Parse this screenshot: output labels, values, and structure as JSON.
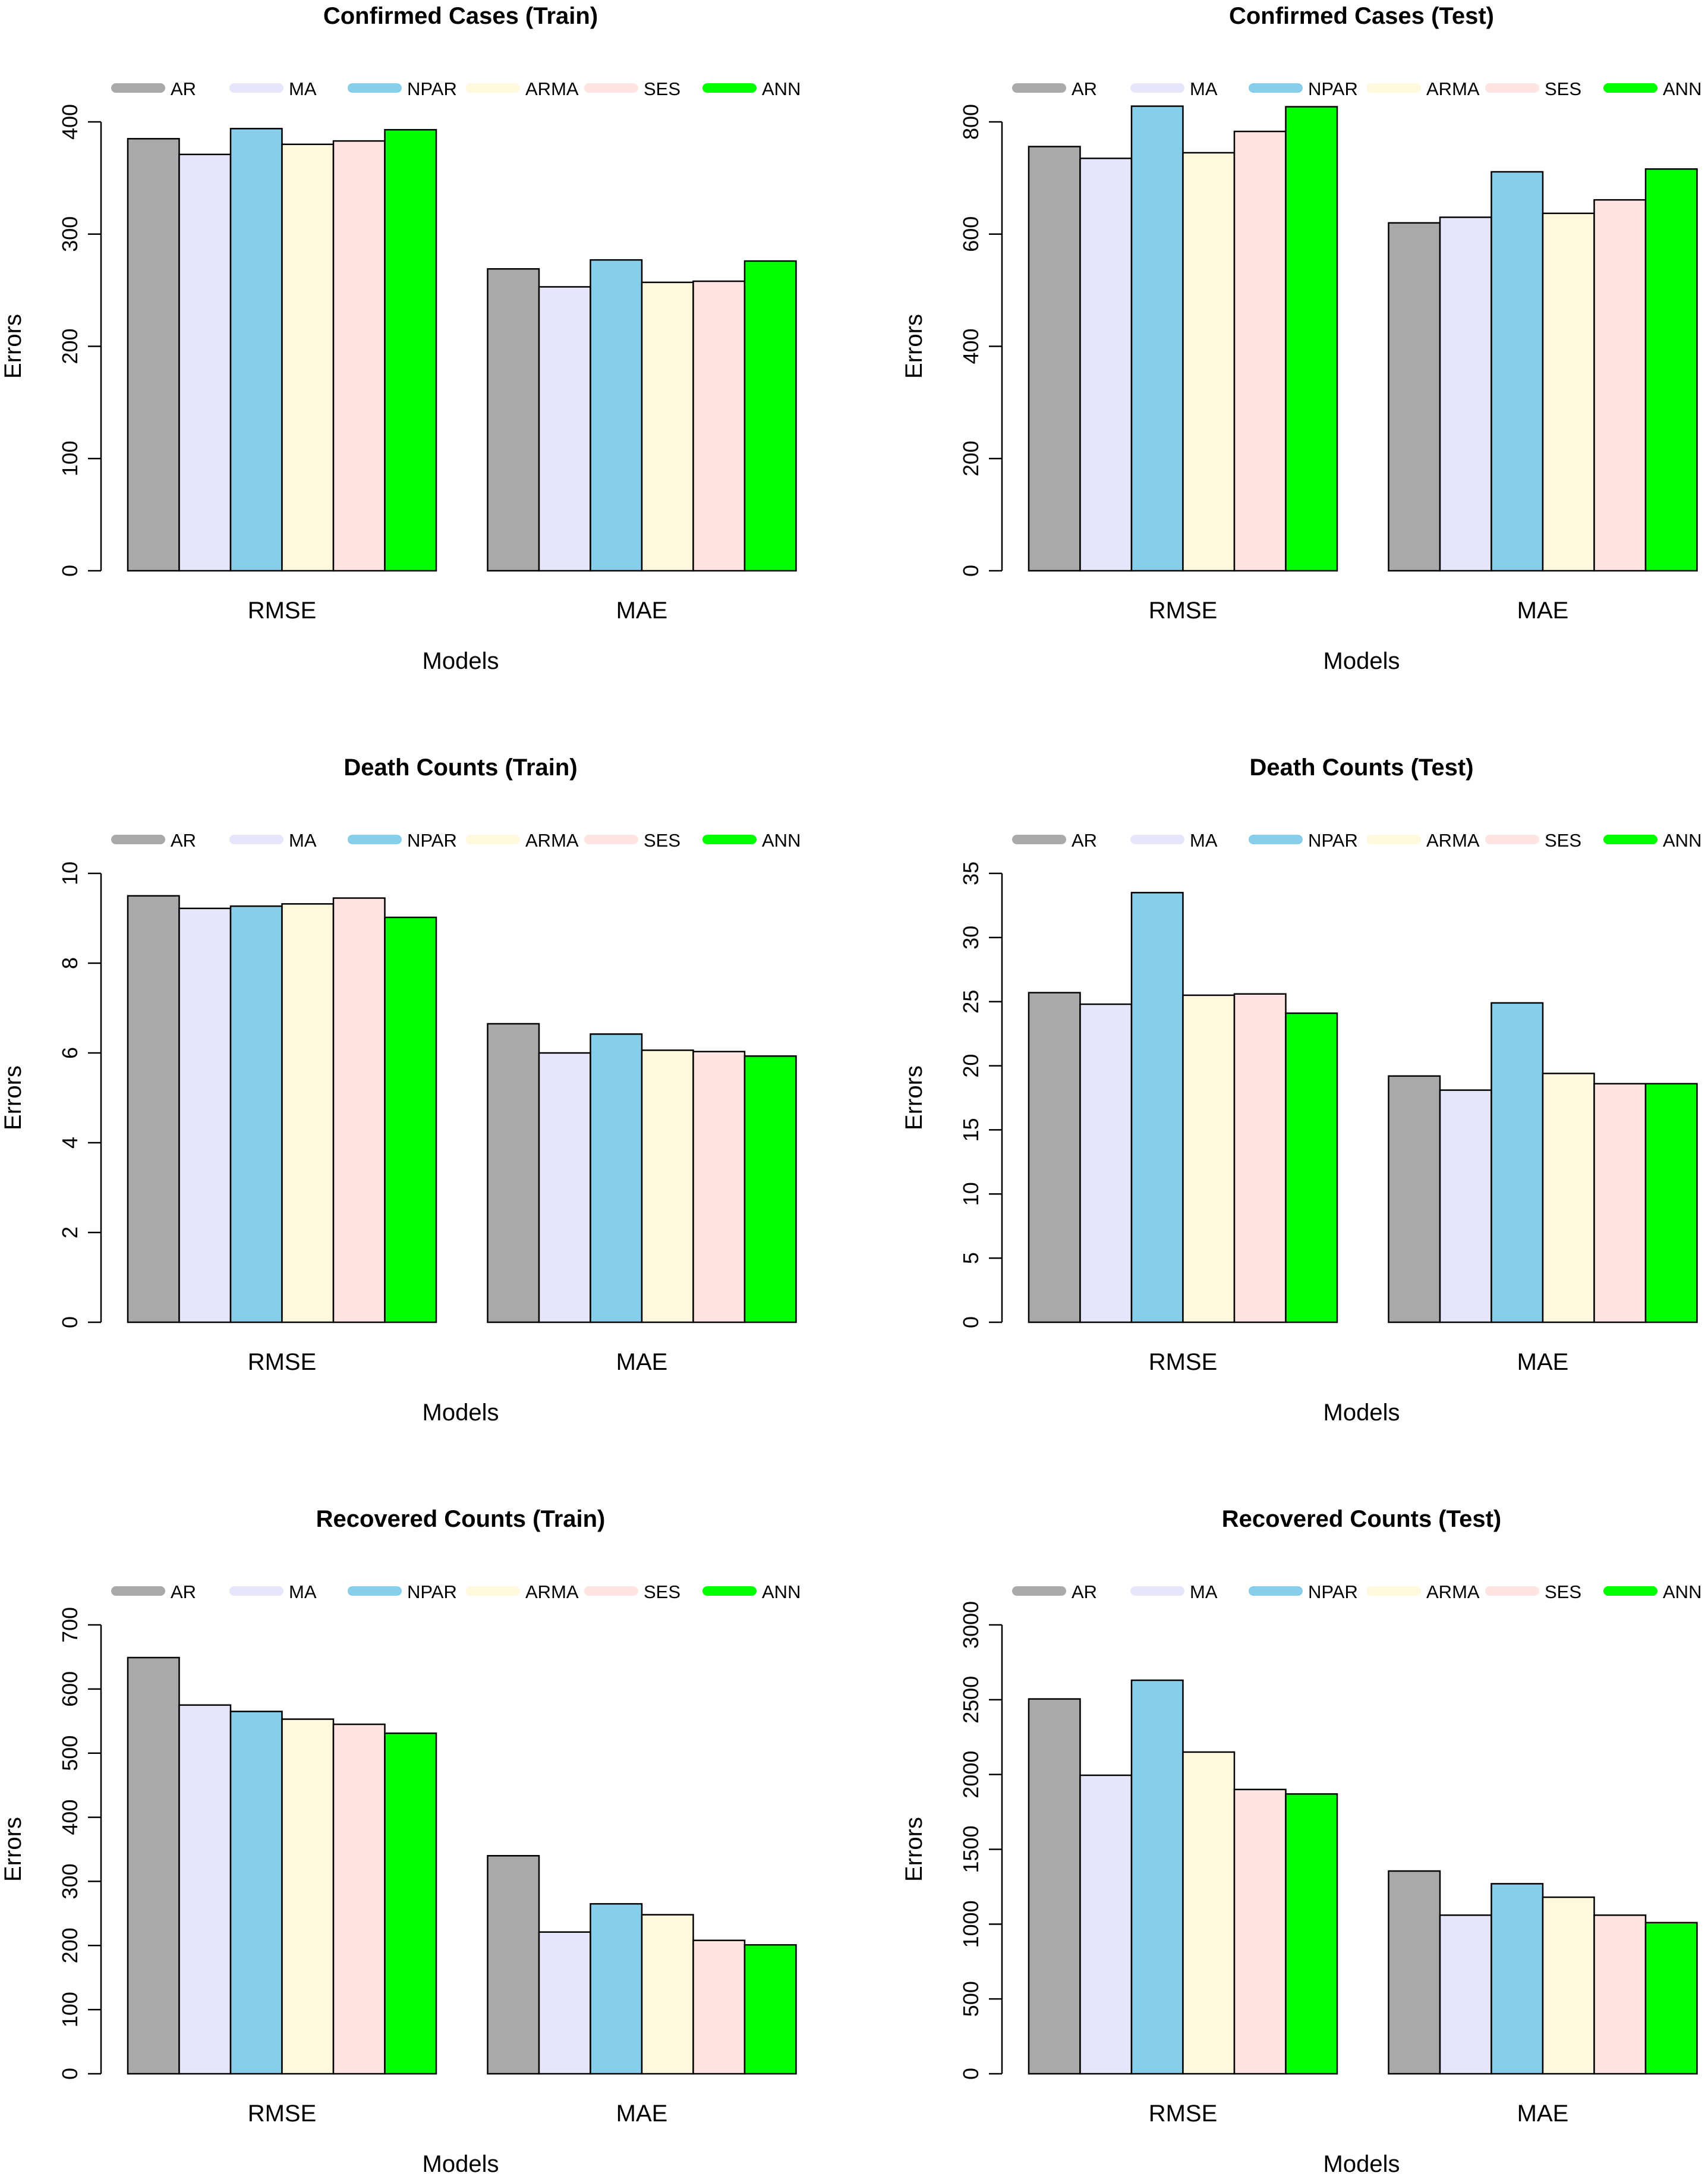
{
  "figure": {
    "legend_labels": [
      "AR",
      "MA",
      "NPAR",
      "ARMA",
      "SES",
      "ANN"
    ],
    "legend_colors": [
      "#A9A9A9",
      "#E6E6FA",
      "#87CEEB",
      "#FFF8DC",
      "#FFE4E1",
      "#00FF00"
    ],
    "bar_outline_color": "#000000"
  },
  "chart_data": [
    {
      "type": "bar",
      "title": "Confirmed Cases (Train)",
      "xlabel": "Models",
      "ylabel": "Errors",
      "categories": [
        "RMSE",
        "MAE"
      ],
      "ylim": [
        0,
        400
      ],
      "yticks": [
        0,
        100,
        200,
        300,
        400
      ],
      "series": [
        {
          "name": "AR",
          "values": [
            385,
            269
          ]
        },
        {
          "name": "MA",
          "values": [
            371,
            253
          ]
        },
        {
          "name": "NPAR",
          "values": [
            394,
            277
          ]
        },
        {
          "name": "ARMA",
          "values": [
            380,
            257
          ]
        },
        {
          "name": "SES",
          "values": [
            383,
            258
          ]
        },
        {
          "name": "ANN",
          "values": [
            393,
            276
          ]
        }
      ]
    },
    {
      "type": "bar",
      "title": "Confirmed Cases (Test)",
      "xlabel": "Models",
      "ylabel": "Errors",
      "categories": [
        "RMSE",
        "MAE"
      ],
      "ylim": [
        0,
        800
      ],
      "yticks": [
        0,
        200,
        400,
        600,
        800
      ],
      "series": [
        {
          "name": "AR",
          "values": [
            756,
            620
          ]
        },
        {
          "name": "MA",
          "values": [
            735,
            630
          ]
        },
        {
          "name": "NPAR",
          "values": [
            828,
            711
          ]
        },
        {
          "name": "ARMA",
          "values": [
            745,
            637
          ]
        },
        {
          "name": "SES",
          "values": [
            783,
            661
          ]
        },
        {
          "name": "ANN",
          "values": [
            827,
            716
          ]
        }
      ]
    },
    {
      "type": "bar",
      "title": "Death Counts (Train)",
      "xlabel": "Models",
      "ylabel": "Errors",
      "categories": [
        "RMSE",
        "MAE"
      ],
      "ylim": [
        0,
        10
      ],
      "yticks": [
        0,
        2,
        4,
        6,
        8,
        10
      ],
      "series": [
        {
          "name": "AR",
          "values": [
            9.5,
            6.65
          ]
        },
        {
          "name": "MA",
          "values": [
            9.22,
            6.0
          ]
        },
        {
          "name": "NPAR",
          "values": [
            9.27,
            6.42
          ]
        },
        {
          "name": "ARMA",
          "values": [
            9.32,
            6.06
          ]
        },
        {
          "name": "SES",
          "values": [
            9.45,
            6.03
          ]
        },
        {
          "name": "ANN",
          "values": [
            9.02,
            5.93
          ]
        }
      ]
    },
    {
      "type": "bar",
      "title": "Death Counts (Test)",
      "xlabel": "Models",
      "ylabel": "Errors",
      "categories": [
        "RMSE",
        "MAE"
      ],
      "ylim": [
        0,
        35
      ],
      "yticks": [
        0,
        5,
        10,
        15,
        20,
        25,
        30,
        35
      ],
      "series": [
        {
          "name": "AR",
          "values": [
            25.7,
            19.2
          ]
        },
        {
          "name": "MA",
          "values": [
            24.8,
            18.1
          ]
        },
        {
          "name": "NPAR",
          "values": [
            33.5,
            24.9
          ]
        },
        {
          "name": "ARMA",
          "values": [
            25.5,
            19.4
          ]
        },
        {
          "name": "SES",
          "values": [
            25.6,
            18.6
          ]
        },
        {
          "name": "ANN",
          "values": [
            24.1,
            18.6
          ]
        }
      ]
    },
    {
      "type": "bar",
      "title": "Recovered Counts (Train)",
      "xlabel": "Models",
      "ylabel": "Errors",
      "categories": [
        "RMSE",
        "MAE"
      ],
      "ylim": [
        0,
        700
      ],
      "yticks": [
        0,
        100,
        200,
        300,
        400,
        500,
        600,
        700
      ],
      "series": [
        {
          "name": "AR",
          "values": [
            649,
            340
          ]
        },
        {
          "name": "MA",
          "values": [
            575,
            221
          ]
        },
        {
          "name": "NPAR",
          "values": [
            565,
            265
          ]
        },
        {
          "name": "ARMA",
          "values": [
            553,
            248
          ]
        },
        {
          "name": "SES",
          "values": [
            545,
            208
          ]
        },
        {
          "name": "ANN",
          "values": [
            531,
            201
          ]
        }
      ]
    },
    {
      "type": "bar",
      "title": "Recovered Counts (Test)",
      "xlabel": "Models",
      "ylabel": "Errors",
      "categories": [
        "RMSE",
        "MAE"
      ],
      "ylim": [
        0,
        3000
      ],
      "yticks": [
        0,
        500,
        1000,
        1500,
        2000,
        2500,
        3000
      ],
      "series": [
        {
          "name": "AR",
          "values": [
            2505,
            1355
          ]
        },
        {
          "name": "MA",
          "values": [
            1995,
            1060
          ]
        },
        {
          "name": "NPAR",
          "values": [
            2630,
            1270
          ]
        },
        {
          "name": "ARMA",
          "values": [
            2150,
            1180
          ]
        },
        {
          "name": "SES",
          "values": [
            1900,
            1060
          ]
        },
        {
          "name": "ANN",
          "values": [
            1870,
            1010
          ]
        }
      ]
    }
  ]
}
